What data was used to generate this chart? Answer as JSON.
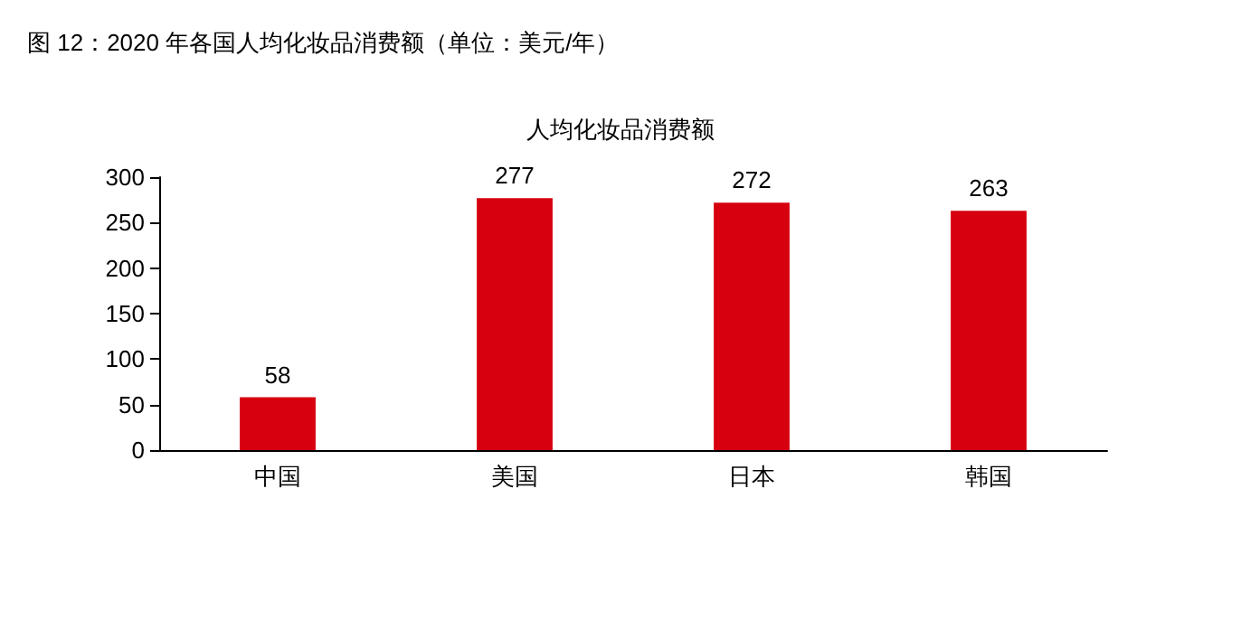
{
  "chart_data": {
    "type": "bar",
    "title": "图 12：2020 年各国人均化妆品消费额（单位：美元/年）",
    "subtitle": "人均化妆品消费额",
    "categories": [
      "中国",
      "美国",
      "日本",
      "韩国"
    ],
    "values": [
      58,
      277,
      272,
      263
    ],
    "color": "#d7000f",
    "ylim": [
      0,
      300
    ],
    "yticks": [
      0,
      50,
      100,
      150,
      200,
      250,
      300
    ],
    "grid": false,
    "data_labels": true
  }
}
